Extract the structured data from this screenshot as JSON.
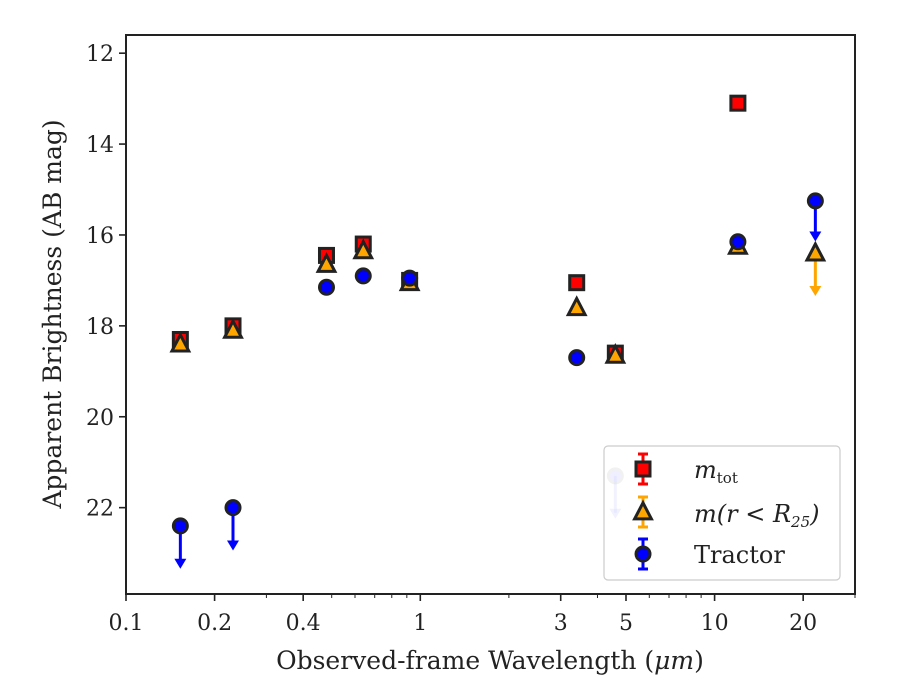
{
  "chart_data": {
    "type": "scatter",
    "xlabel_main": "Observed-frame Wavelength (",
    "xlabel_unit": "μm",
    "xlabel_close": ")",
    "ylabel": "Apparent Brightness (AB mag)",
    "xscale": "log",
    "xlim": [
      0.1,
      30
    ],
    "ylim": [
      23.9,
      11.6
    ],
    "y_inverted": true,
    "grid": false,
    "legend_position": "lower-right",
    "xticks": [
      {
        "value": 0.1,
        "label": "0.1"
      },
      {
        "value": 0.2,
        "label": "0.2"
      },
      {
        "value": 0.4,
        "label": "0.4"
      },
      {
        "value": 1,
        "label": "1"
      },
      {
        "value": 3,
        "label": "3"
      },
      {
        "value": 5,
        "label": "5"
      },
      {
        "value": 10,
        "label": "10"
      },
      {
        "value": 20,
        "label": "20"
      }
    ],
    "yticks": [
      {
        "value": 12,
        "label": "12"
      },
      {
        "value": 14,
        "label": "14"
      },
      {
        "value": 16,
        "label": "16"
      },
      {
        "value": 18,
        "label": "18"
      },
      {
        "value": 20,
        "label": "20"
      },
      {
        "value": 22,
        "label": "22"
      }
    ],
    "series": [
      {
        "name": "m_tot",
        "legend_main": "m",
        "legend_sub": "tot",
        "marker": "square",
        "color": "#ff0000",
        "points": [
          {
            "x": 0.153,
            "y": 18.3
          },
          {
            "x": 0.231,
            "y": 18.0
          },
          {
            "x": 0.48,
            "y": 16.45
          },
          {
            "x": 0.64,
            "y": 16.2
          },
          {
            "x": 0.92,
            "y": 17.0
          },
          {
            "x": 3.4,
            "y": 17.05
          },
          {
            "x": 4.6,
            "y": 18.6
          },
          {
            "x": 12.0,
            "y": 13.1
          }
        ]
      },
      {
        "name": "m(r < R25)",
        "legend_main": "m(r < R",
        "legend_sub": "25",
        "legend_close": ")",
        "marker": "triangle",
        "color": "#ffa500",
        "points": [
          {
            "x": 0.153,
            "y": 18.4
          },
          {
            "x": 0.231,
            "y": 18.1
          },
          {
            "x": 0.48,
            "y": 16.65
          },
          {
            "x": 0.64,
            "y": 16.35
          },
          {
            "x": 0.92,
            "y": 17.05
          },
          {
            "x": 3.4,
            "y": 17.6
          },
          {
            "x": 4.6,
            "y": 18.65
          },
          {
            "x": 12.0,
            "y": 16.25
          },
          {
            "x": 22.0,
            "y": 16.4,
            "upper_limit": true,
            "limit_to": 17.3
          }
        ]
      },
      {
        "name": "Tractor",
        "legend_main": "Tractor",
        "marker": "circle",
        "color": "#0000ff",
        "points": [
          {
            "x": 0.153,
            "y": 22.4,
            "upper_limit": true,
            "limit_to": 23.3
          },
          {
            "x": 0.231,
            "y": 22.0,
            "upper_limit": true,
            "limit_to": 22.9
          },
          {
            "x": 0.48,
            "y": 17.15
          },
          {
            "x": 0.64,
            "y": 16.9
          },
          {
            "x": 0.92,
            "y": 16.95
          },
          {
            "x": 3.4,
            "y": 18.7
          },
          {
            "x": 4.6,
            "y": 21.3,
            "upper_limit": true,
            "limit_to": 22.2,
            "faded": true
          },
          {
            "x": 12.0,
            "y": 16.15
          },
          {
            "x": 22.0,
            "y": 15.25,
            "upper_limit": true,
            "limit_to": 16.1
          }
        ]
      }
    ]
  }
}
